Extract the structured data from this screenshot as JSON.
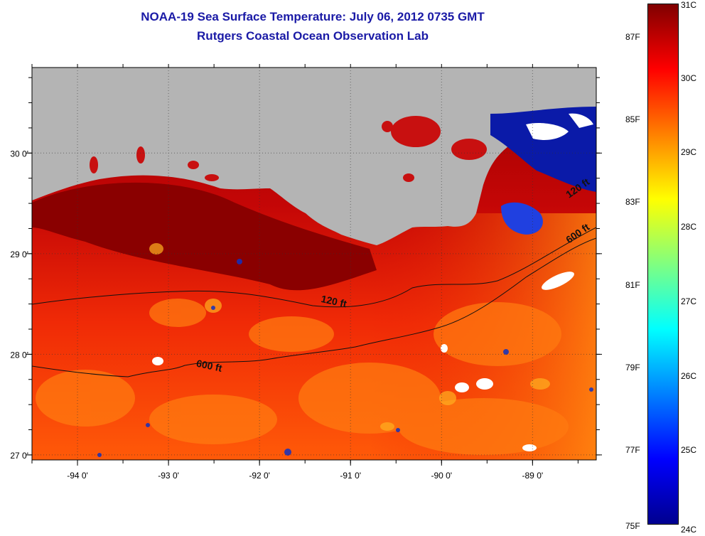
{
  "header": {
    "title": "NOAA-19 Sea Surface Temperature:  July 06, 2012 0735 GMT",
    "subtitle": "Rutgers Coastal Ocean Observation Lab"
  },
  "map": {
    "lon_range": [
      -94.5,
      -88.3
    ],
    "lat_range": [
      26.95,
      30.85
    ],
    "lon_ticks": [
      {
        "value": -94,
        "label": "-94 0'"
      },
      {
        "value": -93,
        "label": "-93 0'"
      },
      {
        "value": -92,
        "label": "-92 0'"
      },
      {
        "value": -91,
        "label": "-91 0'"
      },
      {
        "value": -90,
        "label": "-90 0'"
      },
      {
        "value": -89,
        "label": "-89 0'"
      }
    ],
    "lat_ticks": [
      {
        "value": 30,
        "label": "30 0'"
      },
      {
        "value": 29,
        "label": "29 0'"
      },
      {
        "value": 28,
        "label": "28 0'"
      },
      {
        "value": 27,
        "label": "27 0'"
      }
    ],
    "depth_labels": [
      {
        "text": "120 ft",
        "lon": -91.33,
        "lat": 28.52
      },
      {
        "text": "600 ft",
        "lon": -92.7,
        "lat": 27.88
      },
      {
        "text": "120 ft",
        "lon": -88.6,
        "lat": 29.55
      },
      {
        "text": "600 ft",
        "lon": -88.6,
        "lat": 29.1
      }
    ],
    "land_color": "#b4b4b4",
    "cold_color": "#0a1aa8",
    "cloud_color": "#ffffff"
  },
  "colorbar": {
    "min_c": 24,
    "max_c": 31,
    "celsius_labels": [
      {
        "value": 31,
        "label": "31C"
      },
      {
        "value": 30,
        "label": "30C"
      },
      {
        "value": 29,
        "label": "29C"
      },
      {
        "value": 28,
        "label": "28C"
      },
      {
        "value": 27,
        "label": "27C"
      },
      {
        "value": 26,
        "label": "26C"
      },
      {
        "value": 25,
        "label": "25C"
      },
      {
        "value": 24,
        "label": "24C"
      }
    ],
    "fahrenheit_labels": [
      {
        "value": 87,
        "label": "87F"
      },
      {
        "value": 85,
        "label": "85F"
      },
      {
        "value": 83,
        "label": "83F"
      },
      {
        "value": 81,
        "label": "81F"
      },
      {
        "value": 79,
        "label": "79F"
      },
      {
        "value": 77,
        "label": "77F"
      },
      {
        "value": 75,
        "label": "75F"
      }
    ],
    "colors": [
      "#00008f",
      "#0000ff",
      "#0080ff",
      "#00ffff",
      "#80ff80",
      "#ffff00",
      "#ff8000",
      "#ff0000",
      "#800000"
    ]
  }
}
